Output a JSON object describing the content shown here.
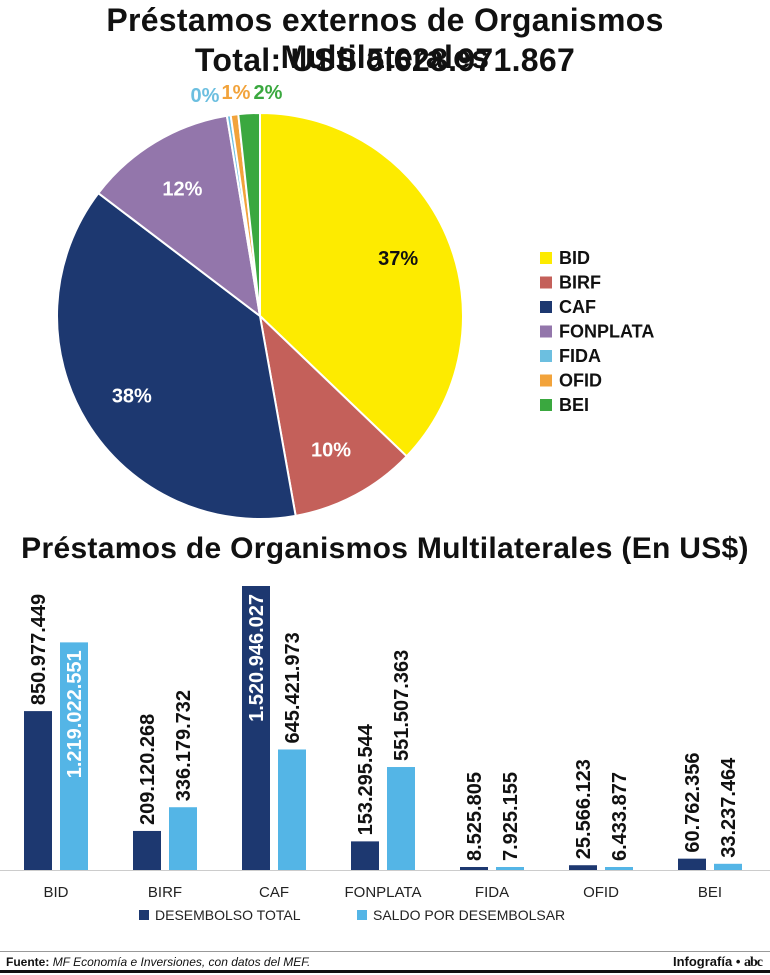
{
  "colors": {
    "BID": "#fdeb00",
    "BIRF": "#c4605a",
    "CAF": "#1d3870",
    "FONPLATA": "#9376ab",
    "FIDA": "#6cbfe0",
    "OFID": "#f2a33b",
    "BEI": "#3aa83f",
    "desembolso": "#1d3870",
    "saldo": "#54b5e6"
  },
  "chart_data": [
    {
      "type": "pie",
      "title": "Préstamos externos de Organismos Multilaterales",
      "subtitle": "Total: USS 5.628.971.867",
      "slices": [
        {
          "name": "BID",
          "value": 37,
          "label": "37%"
        },
        {
          "name": "BIRF",
          "value": 10,
          "label": "10%"
        },
        {
          "name": "CAF",
          "value": 38,
          "label": "38%"
        },
        {
          "name": "FONPLATA",
          "value": 12,
          "label": "12%"
        },
        {
          "name": "FIDA",
          "value": 0.3,
          "label": "0%"
        },
        {
          "name": "OFID",
          "value": 0.6,
          "label": "1%"
        },
        {
          "name": "BEI",
          "value": 1.7,
          "label": "2%"
        }
      ],
      "legend": [
        "BID",
        "BIRF",
        "CAF",
        "FONPLATA",
        "FIDA",
        "OFID",
        "BEI"
      ]
    },
    {
      "type": "bar",
      "title": "Préstamos de Organismos Multilaterales (En US$)",
      "categories": [
        "BID",
        "BIRF",
        "CAF",
        "FONPLATA",
        "FIDA",
        "OFID",
        "BEI"
      ],
      "series": [
        {
          "name": "DESEMBOLSO TOTAL",
          "values": [
            850977449,
            209120268,
            1520946027,
            153295544,
            8525805,
            25566123,
            60762356
          ],
          "labels": [
            "850.977.449",
            "209.120.268",
            "1.520.946.027",
            "153.295.544",
            "8.525.805",
            "25.566.123",
            "60.762.356"
          ]
        },
        {
          "name": "SALDO POR DESEMBOLSAR",
          "values": [
            1219022551,
            336179732,
            645421973,
            551507363,
            7925155,
            6433877,
            33237464
          ],
          "labels": [
            "1.219.022.551",
            "336.179.732",
            "645.421.973",
            "551.507.363",
            "7.925.155",
            "6.433.877",
            "33.237.464"
          ]
        }
      ],
      "ylim": [
        0,
        1520946027
      ]
    }
  ],
  "footer": {
    "source_label": "Fuente:",
    "source_text": "MF Economía e Inversiones, con datos del MEF.",
    "credit": "Infografía •",
    "logo": "abc"
  }
}
